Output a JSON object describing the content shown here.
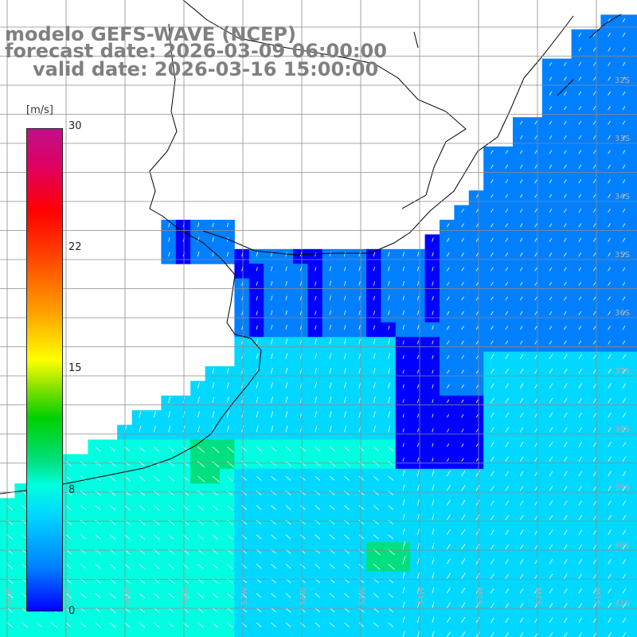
{
  "title": {
    "line1": "modelo GEFS-WAVE (NCEP)",
    "line2": "forecast date: 2026-03-09 06:00:00",
    "line3": "valid date: 2026-03-16 15:00:00"
  },
  "colorbar": {
    "units": "[m/s]",
    "ticks": [
      "30",
      "22",
      "15",
      "8",
      "0"
    ],
    "stops": [
      "#0000ff",
      "#0080ff",
      "#00d8ff",
      "#00ffe0",
      "#00e080",
      "#00d000",
      "#80e000",
      "#ffff00",
      "#ffa000",
      "#ff4000",
      "#ff0000",
      "#e00060",
      "#c0108a"
    ]
  },
  "grid": {
    "lat_labels": [
      "32S",
      "33S",
      "34S",
      "35S",
      "36S",
      "37S",
      "38S",
      "39S",
      "40S",
      "41S"
    ],
    "lon_labels": [
      "61W",
      "60W",
      "59W",
      "58W",
      "57W",
      "56W",
      "55W",
      "54W",
      "53W",
      "52W",
      "51W",
      "50W"
    ]
  },
  "colors": {
    "land": "#ffffff",
    "coastline": "#000000",
    "gridline": "#8c8c8c",
    "arrow": "#ffffff"
  }
}
